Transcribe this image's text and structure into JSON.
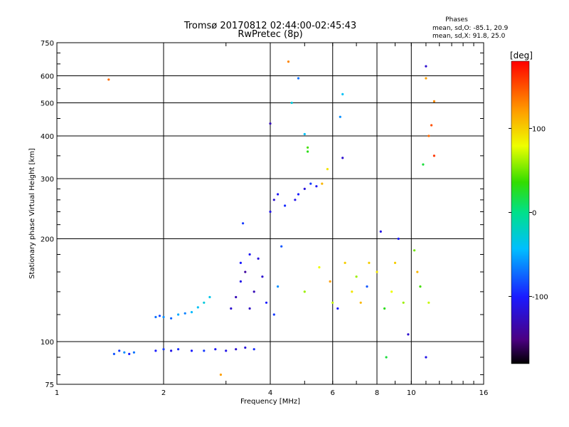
{
  "title_line1": "Tromsø 20170812 02:44:00-02:45:43",
  "title_line2": "RwPretec (8p)",
  "phases": {
    "heading": "Phases",
    "line_o": "mean, sd,O: -85.1, 20.9",
    "line_x": "mean, sd,X:  91.8, 25.0"
  },
  "colorbar": {
    "unit": "[deg]",
    "range": [
      -180,
      180
    ],
    "ticks": [
      {
        "label": "100",
        "value": 100
      },
      {
        "label": "0",
        "value": 0
      },
      {
        "label": "-100",
        "value": -100
      }
    ]
  },
  "chart_data": {
    "type": "scatter",
    "xlabel": "Frequency [MHz]",
    "ylabel": "Stationary phase Virtual Height [km]",
    "xscale": "log",
    "yscale": "log",
    "xlim": [
      1,
      16
    ],
    "ylim": [
      75,
      750
    ],
    "grid": true,
    "xticks": [
      {
        "label": "1",
        "value": 1
      },
      {
        "label": "2",
        "value": 2
      },
      {
        "label": "4",
        "value": 4
      },
      {
        "label": "6",
        "value": 6
      },
      {
        "label": "8",
        "value": 8
      },
      {
        "label": "10",
        "value": 10
      },
      {
        "label": "16",
        "value": 16
      }
    ],
    "yticks": [
      {
        "label": "75",
        "value": 75
      },
      {
        "label": "100",
        "value": 100
      },
      {
        "label": "200",
        "value": 200
      },
      {
        "label": "300",
        "value": 300
      },
      {
        "label": "400",
        "value": 400
      },
      {
        "label": "500",
        "value": 500
      },
      {
        "label": "600",
        "value": 600
      },
      {
        "label": "750",
        "value": 750
      }
    ],
    "color_variable": "phase [deg]",
    "points": [
      {
        "x": 1.4,
        "y": 585,
        "c": 140
      },
      {
        "x": 1.45,
        "y": 92,
        "c": -80
      },
      {
        "x": 1.5,
        "y": 94,
        "c": -90
      },
      {
        "x": 1.55,
        "y": 93,
        "c": -60
      },
      {
        "x": 1.6,
        "y": 92,
        "c": -100
      },
      {
        "x": 1.65,
        "y": 93,
        "c": -70
      },
      {
        "x": 1.9,
        "y": 118,
        "c": -70
      },
      {
        "x": 1.95,
        "y": 119,
        "c": -85
      },
      {
        "x": 2.0,
        "y": 118,
        "c": -60
      },
      {
        "x": 2.1,
        "y": 117,
        "c": -75
      },
      {
        "x": 2.2,
        "y": 120,
        "c": -50
      },
      {
        "x": 2.3,
        "y": 121,
        "c": -65
      },
      {
        "x": 2.4,
        "y": 122,
        "c": -45
      },
      {
        "x": 2.5,
        "y": 126,
        "c": -40
      },
      {
        "x": 2.6,
        "y": 130,
        "c": -30
      },
      {
        "x": 2.7,
        "y": 135,
        "c": -35
      },
      {
        "x": 1.9,
        "y": 94,
        "c": -100
      },
      {
        "x": 2.0,
        "y": 95,
        "c": -90
      },
      {
        "x": 2.1,
        "y": 94,
        "c": -110
      },
      {
        "x": 2.2,
        "y": 95,
        "c": -95
      },
      {
        "x": 2.4,
        "y": 94,
        "c": -100
      },
      {
        "x": 2.6,
        "y": 94,
        "c": -90
      },
      {
        "x": 2.8,
        "y": 95,
        "c": -105
      },
      {
        "x": 3.0,
        "y": 94,
        "c": -110
      },
      {
        "x": 3.2,
        "y": 95,
        "c": -120
      },
      {
        "x": 3.4,
        "y": 96,
        "c": -115
      },
      {
        "x": 3.6,
        "y": 95,
        "c": -95
      },
      {
        "x": 2.9,
        "y": 80,
        "c": 120
      },
      {
        "x": 3.1,
        "y": 125,
        "c": -120
      },
      {
        "x": 3.2,
        "y": 135,
        "c": -130
      },
      {
        "x": 3.3,
        "y": 150,
        "c": -110
      },
      {
        "x": 3.3,
        "y": 170,
        "c": -100
      },
      {
        "x": 3.35,
        "y": 222,
        "c": -90
      },
      {
        "x": 3.4,
        "y": 160,
        "c": -140
      },
      {
        "x": 3.5,
        "y": 125,
        "c": -125
      },
      {
        "x": 3.5,
        "y": 180,
        "c": -105
      },
      {
        "x": 3.6,
        "y": 140,
        "c": -130
      },
      {
        "x": 3.7,
        "y": 175,
        "c": -115
      },
      {
        "x": 3.8,
        "y": 155,
        "c": -120
      },
      {
        "x": 3.9,
        "y": 130,
        "c": -100
      },
      {
        "x": 4.0,
        "y": 240,
        "c": -110
      },
      {
        "x": 4.0,
        "y": 435,
        "c": -130
      },
      {
        "x": 4.1,
        "y": 260,
        "c": -120
      },
      {
        "x": 4.1,
        "y": 120,
        "c": -90
      },
      {
        "x": 4.2,
        "y": 270,
        "c": -105
      },
      {
        "x": 4.2,
        "y": 145,
        "c": -60
      },
      {
        "x": 4.3,
        "y": 190,
        "c": -80
      },
      {
        "x": 4.4,
        "y": 250,
        "c": -95
      },
      {
        "x": 4.5,
        "y": 660,
        "c": 130
      },
      {
        "x": 4.6,
        "y": 500,
        "c": -30
      },
      {
        "x": 4.7,
        "y": 260,
        "c": -110
      },
      {
        "x": 4.8,
        "y": 270,
        "c": -100
      },
      {
        "x": 4.8,
        "y": 590,
        "c": -70
      },
      {
        "x": 5.0,
        "y": 280,
        "c": -115
      },
      {
        "x": 5.0,
        "y": 140,
        "c": 60
      },
      {
        "x": 5.2,
        "y": 290,
        "c": -90
      },
      {
        "x": 5.4,
        "y": 285,
        "c": -105
      },
      {
        "x": 5.5,
        "y": 165,
        "c": 80
      },
      {
        "x": 5.0,
        "y": 405,
        "c": -40
      },
      {
        "x": 5.1,
        "y": 360,
        "c": 30
      },
      {
        "x": 5.1,
        "y": 370,
        "c": 40
      },
      {
        "x": 5.6,
        "y": 290,
        "c": 110
      },
      {
        "x": 5.8,
        "y": 320,
        "c": 90
      },
      {
        "x": 5.9,
        "y": 150,
        "c": 120
      },
      {
        "x": 6.0,
        "y": 130,
        "c": 70
      },
      {
        "x": 6.3,
        "y": 455,
        "c": -60
      },
      {
        "x": 6.4,
        "y": 530,
        "c": -40
      },
      {
        "x": 6.4,
        "y": 345,
        "c": -120
      },
      {
        "x": 6.2,
        "y": 125,
        "c": -100
      },
      {
        "x": 6.5,
        "y": 170,
        "c": 100
      },
      {
        "x": 6.8,
        "y": 140,
        "c": 90
      },
      {
        "x": 7.0,
        "y": 155,
        "c": 60
      },
      {
        "x": 7.2,
        "y": 130,
        "c": 110
      },
      {
        "x": 7.5,
        "y": 145,
        "c": -80
      },
      {
        "x": 7.6,
        "y": 170,
        "c": 100
      },
      {
        "x": 8.0,
        "y": 160,
        "c": 90
      },
      {
        "x": 8.2,
        "y": 210,
        "c": -110
      },
      {
        "x": 8.4,
        "y": 125,
        "c": 30
      },
      {
        "x": 8.5,
        "y": 90,
        "c": 20
      },
      {
        "x": 8.8,
        "y": 140,
        "c": 80
      },
      {
        "x": 9.0,
        "y": 170,
        "c": 100
      },
      {
        "x": 9.2,
        "y": 200,
        "c": -100
      },
      {
        "x": 9.5,
        "y": 130,
        "c": 60
      },
      {
        "x": 9.8,
        "y": 105,
        "c": -120
      },
      {
        "x": 10.2,
        "y": 185,
        "c": 50
      },
      {
        "x": 10.4,
        "y": 160,
        "c": 110
      },
      {
        "x": 10.6,
        "y": 145,
        "c": 40
      },
      {
        "x": 10.8,
        "y": 330,
        "c": 20
      },
      {
        "x": 11.0,
        "y": 640,
        "c": -120
      },
      {
        "x": 11.0,
        "y": 590,
        "c": 120
      },
      {
        "x": 11.2,
        "y": 400,
        "c": 140
      },
      {
        "x": 11.4,
        "y": 430,
        "c": 150
      },
      {
        "x": 11.6,
        "y": 505,
        "c": 130
      },
      {
        "x": 11.6,
        "y": 350,
        "c": 160
      },
      {
        "x": 11.2,
        "y": 130,
        "c": 70
      },
      {
        "x": 11.0,
        "y": 90,
        "c": -110
      }
    ]
  }
}
